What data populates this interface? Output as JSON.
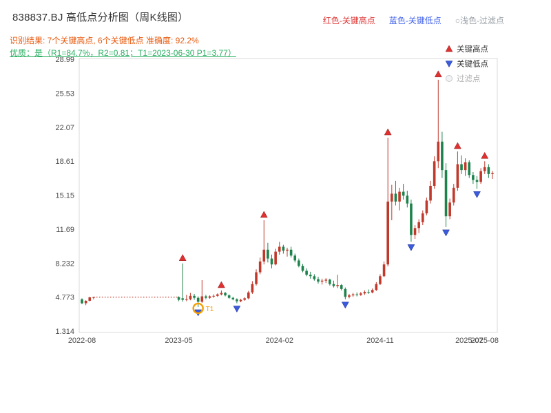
{
  "header": {
    "title": "838837.BJ 高低点分析图（周K线图）",
    "legend": {
      "red": "红色-关键高点",
      "blue": "蓝色-关键低点",
      "filtered": "○浅色-过滤点"
    },
    "recognition": "识别结果: 7个关键高点, 6个关键低点   准确度: 92.2%",
    "quality": "优质：是（R1=84.7%，R2=0.81；T1=2023-06-30 P1=3.77）"
  },
  "chart_data": {
    "type": "candlestick",
    "title": "838837.BJ 高低点分析图（周K线图）",
    "period": "weekly",
    "ylim": [
      1.314,
      28.99
    ],
    "y_ticks": [
      "28.99",
      "25.53",
      "22.07",
      "18.61",
      "15.15",
      "11.69",
      "8.232",
      "4.773",
      "1.314"
    ],
    "y_tick_values": [
      28.99,
      25.53,
      22.07,
      18.61,
      15.15,
      11.69,
      8.232,
      4.773,
      1.314
    ],
    "x_ticks": [
      {
        "slot": 0,
        "label": "2022-08"
      },
      {
        "slot": 25,
        "label": "2023-05"
      },
      {
        "slot": 51,
        "label": "2024-02"
      },
      {
        "slot": 77,
        "label": "2024-11"
      },
      {
        "slot": 100,
        "label": "2025-07"
      },
      {
        "slot": 104,
        "label": "2025-08"
      }
    ],
    "total_slots": 106,
    "grid": false,
    "legend_position": "top-right-inside",
    "legend": [
      {
        "icon": "triangle-up",
        "label": "关键高点"
      },
      {
        "icon": "triangle-down",
        "label": "关键低点"
      },
      {
        "icon": "circle",
        "label": "过滤点"
      }
    ],
    "colors": {
      "up": "#c0392b",
      "down": "#1e824c",
      "flatline": "#c0392b",
      "key_high": "#e03131",
      "key_low": "#3b5bdb",
      "filtered": "#cfcfcf",
      "highlight": "#f59f00",
      "axis_text": "#4a4a4a",
      "frame": "#d9d9d9"
    },
    "flatline": {
      "from_slot": 3,
      "to_slot": 25,
      "price": 4.773
    },
    "segments": [
      {
        "start_slot": 0,
        "ohlc": [
          [
            4.55,
            4.65,
            4.05,
            4.15
          ],
          [
            4.15,
            4.45,
            3.95,
            4.4
          ],
          [
            4.4,
            4.8,
            4.35,
            4.75
          ],
          [
            4.75,
            4.8,
            4.55,
            4.77
          ]
        ]
      },
      {
        "start_slot": 25,
        "ohlc": [
          [
            4.77,
            4.85,
            4.35,
            4.5
          ],
          [
            4.65,
            8.2,
            4.3,
            4.5
          ],
          [
            4.5,
            5.0,
            4.35,
            4.55
          ],
          [
            4.55,
            5.2,
            4.45,
            4.9
          ],
          [
            4.9,
            5.1,
            4.5,
            4.7
          ],
          [
            4.7,
            4.85,
            3.77,
            4.3
          ],
          [
            4.3,
            6.5,
            4.2,
            4.85
          ],
          [
            4.85,
            5.0,
            4.55,
            4.7
          ],
          [
            4.7,
            4.95,
            4.6,
            4.85
          ],
          [
            4.85,
            5.05,
            4.7,
            4.9
          ],
          [
            4.9,
            5.15,
            4.8,
            5.05
          ],
          [
            5.05,
            5.45,
            4.95,
            5.2
          ],
          [
            5.2,
            5.3,
            4.85,
            4.95
          ],
          [
            4.95,
            5.05,
            4.6,
            4.7
          ],
          [
            4.7,
            4.8,
            4.45,
            4.55
          ],
          [
            4.55,
            4.65,
            4.15,
            4.35
          ],
          [
            4.35,
            4.6,
            4.25,
            4.5
          ],
          [
            4.5,
            4.75,
            4.4,
            4.65
          ],
          [
            4.65,
            5.4,
            4.55,
            5.25
          ],
          [
            5.25,
            6.4,
            5.1,
            6.1
          ],
          [
            6.1,
            7.6,
            5.95,
            7.3
          ],
          [
            7.3,
            8.8,
            7.1,
            8.4
          ],
          [
            8.4,
            12.6,
            8.1,
            9.6
          ],
          [
            9.6,
            10.3,
            8.3,
            8.7
          ],
          [
            8.7,
            9.1,
            7.7,
            8.1
          ],
          [
            8.1,
            9.7,
            8.0,
            9.4
          ],
          [
            9.4,
            10.4,
            9.1,
            9.9
          ],
          [
            9.9,
            10.1,
            9.2,
            9.5
          ],
          [
            9.5,
            9.8,
            8.9,
            9.6
          ],
          [
            9.6,
            9.9,
            8.8,
            9.0
          ],
          [
            9.0,
            9.2,
            8.3,
            8.5
          ],
          [
            8.5,
            8.7,
            7.8,
            7.95
          ],
          [
            7.95,
            8.15,
            7.3,
            7.45
          ],
          [
            7.45,
            7.7,
            6.9,
            7.05
          ],
          [
            7.05,
            7.35,
            6.65,
            6.9
          ],
          [
            6.9,
            7.1,
            6.45,
            6.6
          ],
          [
            6.6,
            6.85,
            6.15,
            6.35
          ],
          [
            6.35,
            6.65,
            6.05,
            6.45
          ],
          [
            6.45,
            6.7,
            6.2,
            6.55
          ],
          [
            6.55,
            6.65,
            5.95,
            6.1
          ],
          [
            6.1,
            6.45,
            5.75,
            5.9
          ],
          [
            5.9,
            7.05,
            5.7,
            6.0
          ],
          [
            6.0,
            6.1,
            5.45,
            5.6
          ],
          [
            5.6,
            5.75,
            4.55,
            4.8
          ],
          [
            4.8,
            5.1,
            4.65,
            4.95
          ],
          [
            4.95,
            5.2,
            4.8,
            5.05
          ],
          [
            5.05,
            5.25,
            4.85,
            5.0
          ],
          [
            5.0,
            5.3,
            4.9,
            5.15
          ],
          [
            5.15,
            5.45,
            5.0,
            5.3
          ],
          [
            5.3,
            5.55,
            5.1,
            5.25
          ],
          [
            5.25,
            5.65,
            5.15,
            5.5
          ],
          [
            5.5,
            6.3,
            5.4,
            6.1
          ],
          [
            6.1,
            7.1,
            6.0,
            6.9
          ],
          [
            6.9,
            8.4,
            6.8,
            8.1
          ],
          [
            8.1,
            21.0,
            7.9,
            14.5
          ],
          [
            14.5,
            16.2,
            12.6,
            15.3
          ],
          [
            15.3,
            16.6,
            14.1,
            14.5
          ],
          [
            14.5,
            15.9,
            13.6,
            15.5
          ],
          [
            15.5,
            16.3,
            14.7,
            15.1
          ],
          [
            15.1,
            15.6,
            13.9,
            14.3
          ],
          [
            14.3,
            14.7,
            10.4,
            11.1
          ],
          [
            11.1,
            12.1,
            10.7,
            11.8
          ],
          [
            11.8,
            12.7,
            11.3,
            12.4
          ],
          [
            12.4,
            13.6,
            12.1,
            13.3
          ],
          [
            13.3,
            14.9,
            13.1,
            14.6
          ],
          [
            14.6,
            16.6,
            14.3,
            16.1
          ],
          [
            16.1,
            19.1,
            15.8,
            18.6
          ],
          [
            18.6,
            26.9,
            17.9,
            20.6
          ],
          [
            20.6,
            21.6,
            16.9,
            17.7
          ],
          [
            17.7,
            18.4,
            11.9,
            13.0
          ],
          [
            13.0,
            14.8,
            12.7,
            14.4
          ],
          [
            14.4,
            16.3,
            14.1,
            15.9
          ],
          [
            15.9,
            19.6,
            15.6,
            18.3
          ],
          [
            18.3,
            19.2,
            17.3,
            17.7
          ],
          [
            17.7,
            18.9,
            17.1,
            18.5
          ],
          [
            18.5,
            18.7,
            16.9,
            17.2
          ],
          [
            17.2,
            17.5,
            16.3,
            16.7
          ],
          [
            16.7,
            17.1,
            15.8,
            16.5
          ],
          [
            16.5,
            17.9,
            16.3,
            17.6
          ],
          [
            17.6,
            18.6,
            17.3,
            18.0
          ],
          [
            18.0,
            18.3,
            16.9,
            17.3
          ],
          [
            17.3,
            17.6,
            16.8,
            17.4
          ]
        ]
      }
    ],
    "key_highs": [
      {
        "slot": 26,
        "price": 8.2
      },
      {
        "slot": 36,
        "price": 5.45
      },
      {
        "slot": 47,
        "price": 12.6
      },
      {
        "slot": 79,
        "price": 21.0
      },
      {
        "slot": 92,
        "price": 26.9
      },
      {
        "slot": 97,
        "price": 19.6
      },
      {
        "slot": 104,
        "price": 18.6
      }
    ],
    "key_lows": [
      {
        "slot": 30,
        "price": 3.77,
        "highlight": true,
        "highlight_label": "T1"
      },
      {
        "slot": 40,
        "price": 4.15
      },
      {
        "slot": 68,
        "price": 4.55
      },
      {
        "slot": 85,
        "price": 10.4
      },
      {
        "slot": 94,
        "price": 11.9
      },
      {
        "slot": 102,
        "price": 15.8
      }
    ]
  }
}
